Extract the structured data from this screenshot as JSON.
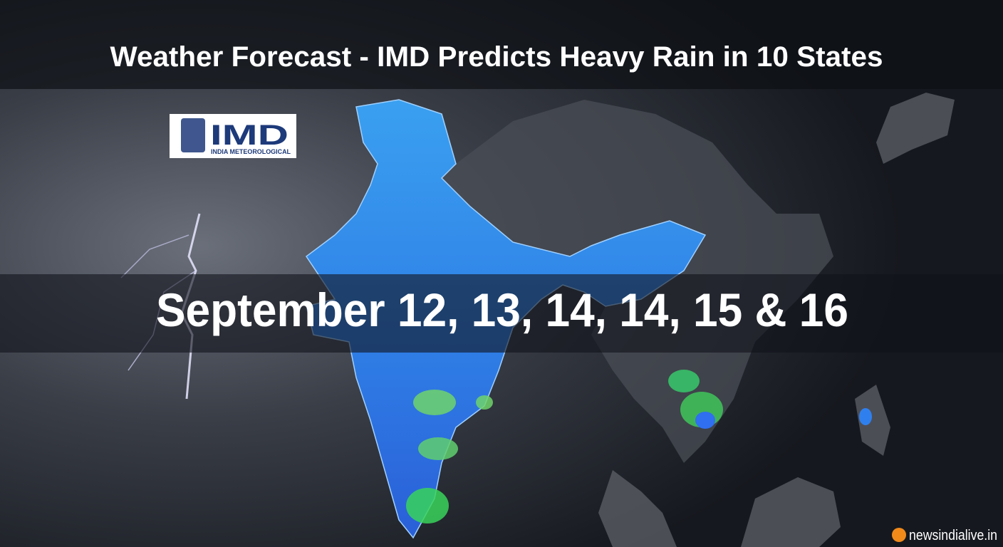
{
  "header": {
    "title": "Weather Forecast - IMD Predicts Heavy Rain in 10 States"
  },
  "logo": {
    "name": "IMD",
    "subtitle": "INDIA METEOROLOGICAL"
  },
  "banner": {
    "dates": "September 12, 13, 14, 14, 15 & 16"
  },
  "watermark": {
    "site": "newsindialive.in"
  }
}
